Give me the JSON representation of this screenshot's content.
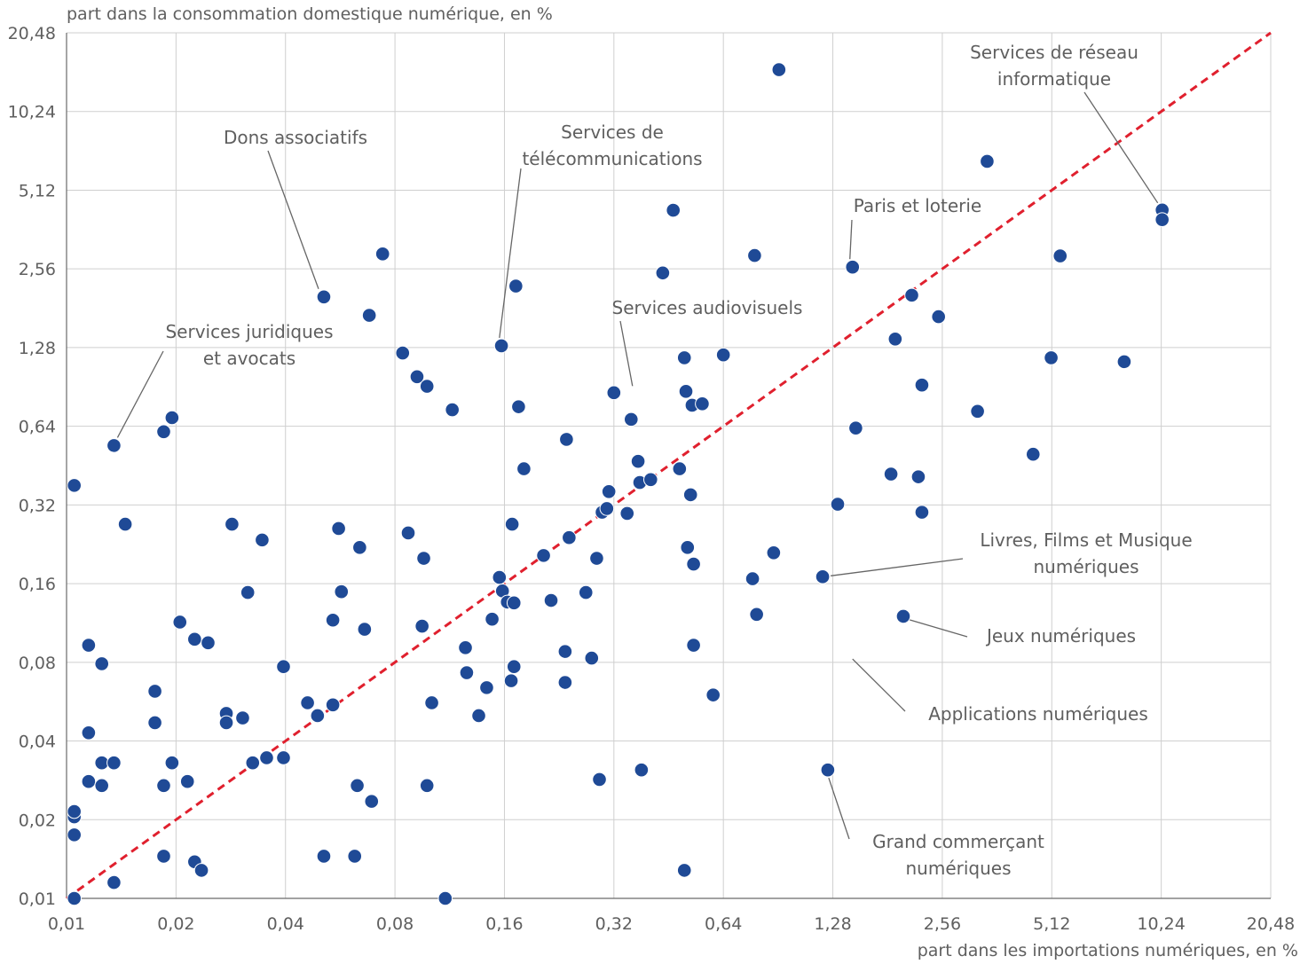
{
  "chart_data": {
    "type": "scatter",
    "title": "",
    "xlabel": "part dans les importations numériques, en %",
    "ylabel": "part dans la consommation domestique numérique, en %",
    "x_scale": "log2",
    "y_scale": "log2",
    "xlim": [
      0.01,
      20.48
    ],
    "ylim": [
      0.01,
      20.48
    ],
    "x_ticks": [
      "0,01",
      "0,02",
      "0,04",
      "0,08",
      "0,16",
      "0,32",
      "0,64",
      "1,28",
      "2,56",
      "5,12",
      "10,24",
      "20,48"
    ],
    "y_ticks": [
      "0,01",
      "0,02",
      "0,04",
      "0,08",
      "0,16",
      "0,32",
      "0,64",
      "1,28",
      "2,56",
      "5,12",
      "10,24",
      "20,48"
    ],
    "grid": true,
    "legend": "none",
    "point_color": "#1f4a96",
    "diagonal_color": "#e0202e",
    "diagonal": {
      "style": "dashed",
      "from": [
        0.01,
        0.01
      ],
      "to": [
        20.48,
        20.48
      ]
    },
    "annotations": [
      {
        "text": [
          "Dons associatifs"
        ],
        "point": [
          0.051,
          2.0
        ]
      },
      {
        "text": [
          "Services de",
          "télécommunications"
        ],
        "point": [
          0.155,
          1.3
        ]
      },
      {
        "text": [
          "Services de réseau",
          "informatique"
        ],
        "point": [
          10.3,
          4.3
        ]
      },
      {
        "text": [
          "Paris et loterie"
        ],
        "point": [
          1.45,
          2.6
        ]
      },
      {
        "text": [
          "Services audiovisuels"
        ],
        "point": [
          0.36,
          0.85
        ]
      },
      {
        "text": [
          "Services juridiques",
          "et avocats"
        ],
        "point": [
          0.0135,
          0.54
        ]
      },
      {
        "text": [
          "Livres, Films et Musique",
          "numériques"
        ],
        "point": [
          1.2,
          0.17
        ]
      },
      {
        "text": [
          "Jeux numériques"
        ],
        "point": [
          2.0,
          0.12
        ]
      },
      {
        "text": [
          "Applications numériques"
        ],
        "point": [
          1.41,
          0.087
        ]
      },
      {
        "text": [
          "Grand commerçant",
          "numériques"
        ],
        "point": [
          1.24,
          0.031
        ]
      }
    ],
    "series": [
      {
        "x": [
          0.0105,
          0.0105,
          0.0105,
          0.0105,
          0.0105,
          0.0115,
          0.0115,
          0.0115,
          0.0125,
          0.0125,
          0.0125,
          0.0135,
          0.0135,
          0.0135,
          0.0145,
          0.0175,
          0.0175,
          0.0185,
          0.0185,
          0.0185,
          0.0195,
          0.0195,
          0.0205,
          0.0215,
          0.0225,
          0.0225,
          0.0235,
          0.0245,
          0.0275,
          0.0275,
          0.0285,
          0.0305,
          0.0315,
          0.0325,
          0.0345,
          0.0355,
          0.0395,
          0.0395,
          0.046,
          0.049,
          0.051,
          0.051,
          0.054,
          0.054,
          0.056,
          0.057,
          0.062,
          0.063,
          0.064,
          0.066,
          0.068,
          0.069,
          0.074,
          0.084,
          0.087,
          0.092,
          0.095,
          0.096,
          0.098,
          0.098,
          0.101,
          0.11,
          0.115,
          0.125,
          0.126,
          0.136,
          0.143,
          0.148,
          0.155,
          0.157,
          0.158,
          0.163,
          0.167,
          0.168,
          0.17,
          0.17,
          0.172,
          0.175,
          0.181,
          0.205,
          0.215,
          0.235,
          0.235,
          0.237,
          0.241,
          0.268,
          0.278,
          0.287,
          0.292,
          0.297,
          0.306,
          0.31,
          0.32,
          0.348,
          0.357,
          0.373,
          0.377,
          0.381,
          0.404,
          0.436,
          0.466,
          0.485,
          0.5,
          0.5,
          0.505,
          0.51,
          0.52,
          0.525,
          0.53,
          0.53,
          0.56,
          0.6,
          0.64,
          0.77,
          0.78,
          0.79,
          0.88,
          0.91,
          1.2,
          1.24,
          1.32,
          1.45,
          1.48,
          1.85,
          1.9,
          2.0,
          2.11,
          2.2,
          2.25,
          2.25,
          2.5,
          3.2,
          3.4,
          4.55,
          5.1,
          5.4,
          8.1,
          10.3,
          10.3
        ],
        "y": [
          0.01,
          0.0175,
          0.0205,
          0.0215,
          0.38,
          0.028,
          0.043,
          0.093,
          0.027,
          0.079,
          0.033,
          0.033,
          0.54,
          0.0115,
          0.27,
          0.047,
          0.062,
          0.61,
          0.027,
          0.0145,
          0.69,
          0.033,
          0.114,
          0.028,
          0.0138,
          0.098,
          0.0128,
          0.095,
          0.051,
          0.047,
          0.27,
          0.049,
          0.148,
          0.033,
          0.235,
          0.0345,
          0.077,
          0.0345,
          0.056,
          0.05,
          2.0,
          0.0145,
          0.116,
          0.055,
          0.26,
          0.149,
          0.0145,
          0.027,
          0.22,
          0.107,
          1.7,
          0.0235,
          2.92,
          1.22,
          0.25,
          0.99,
          0.11,
          0.2,
          0.91,
          0.027,
          0.056,
          0.01,
          0.74,
          0.091,
          0.073,
          0.05,
          0.064,
          0.117,
          0.169,
          1.3,
          0.15,
          0.136,
          0.068,
          0.27,
          0.135,
          0.077,
          2.2,
          0.76,
          0.44,
          0.205,
          0.138,
          0.088,
          0.067,
          0.57,
          0.24,
          0.148,
          0.083,
          0.2,
          0.0285,
          0.3,
          0.31,
          0.36,
          0.86,
          0.297,
          0.68,
          0.47,
          0.39,
          0.031,
          0.4,
          2.47,
          4.29,
          0.44,
          0.0128,
          1.17,
          0.87,
          0.22,
          0.35,
          0.77,
          0.093,
          0.19,
          0.78,
          0.06,
          1.2,
          0.167,
          2.88,
          0.122,
          0.21,
          14.8,
          0.17,
          0.031,
          0.322,
          2.6,
          0.63,
          0.42,
          1.38,
          0.12,
          2.03,
          0.41,
          0.92,
          0.3,
          1.68,
          0.73,
          6.6,
          0.5,
          1.17,
          2.87,
          1.13,
          4.3,
          3.95
        ]
      }
    ]
  }
}
